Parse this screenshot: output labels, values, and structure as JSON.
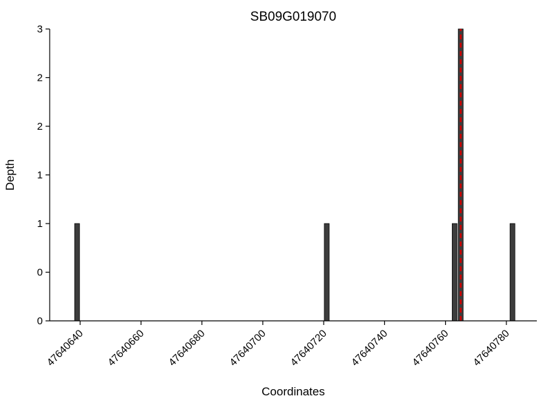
{
  "chart_data": {
    "type": "bar",
    "title": "SB09G019070",
    "xlabel": "Coordinates",
    "ylabel": "Depth",
    "xlim": [
      47640630,
      47640790
    ],
    "ylim": [
      0,
      3
    ],
    "x_ticks": [
      47640640,
      47640660,
      47640680,
      47640700,
      47640720,
      47640740,
      47640760,
      47640780
    ],
    "y_ticks": [
      0,
      0.5,
      1,
      1.5,
      2,
      2.5,
      3
    ],
    "y_tick_labels": [
      "0",
      "0",
      "1",
      "1",
      "2",
      "2",
      "3"
    ],
    "bars": [
      {
        "x": 47640639,
        "height": 1
      },
      {
        "x": 47640721,
        "height": 1
      },
      {
        "x": 47640763,
        "height": 1
      },
      {
        "x": 47640765,
        "height": 3
      },
      {
        "x": 47640782,
        "height": 1
      }
    ],
    "bar_width": 1.6,
    "bar_color": "#3d3d3d",
    "bar_edge_color": "#000000",
    "axis_color": "#000000",
    "marker_line": {
      "x": 47640765,
      "color": "#d40000",
      "dash": "7 5",
      "width": 2.5
    },
    "grid": false,
    "legend": null
  }
}
